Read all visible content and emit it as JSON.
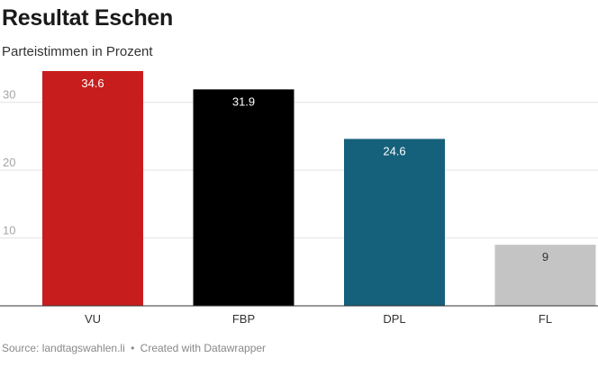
{
  "header": {
    "title": "Resultat Eschen",
    "subtitle": "Parteistimmen in Prozent"
  },
  "footer": {
    "source": "Source: landtagswahlen.li",
    "separator": "•",
    "credit": "Created with Datawrapper"
  },
  "chart_data": {
    "type": "bar",
    "title": "Resultat Eschen",
    "subtitle": "Parteistimmen in Prozent",
    "xlabel": "",
    "ylabel": "",
    "categories": [
      "VU",
      "FBP",
      "DPL",
      "FL"
    ],
    "values": [
      34.6,
      31.9,
      24.6,
      9
    ],
    "value_labels": [
      "34.6",
      "31.9",
      "24.6",
      "9"
    ],
    "bar_colors": [
      "#c71e1d",
      "#000000",
      "#15607a",
      "#c4c4c4"
    ],
    "label_colors": [
      "#ffffff",
      "#ffffff",
      "#ffffff",
      "#333333"
    ],
    "yticks": [
      10,
      20,
      30
    ],
    "ylim": [
      0,
      35
    ],
    "grid": true
  }
}
